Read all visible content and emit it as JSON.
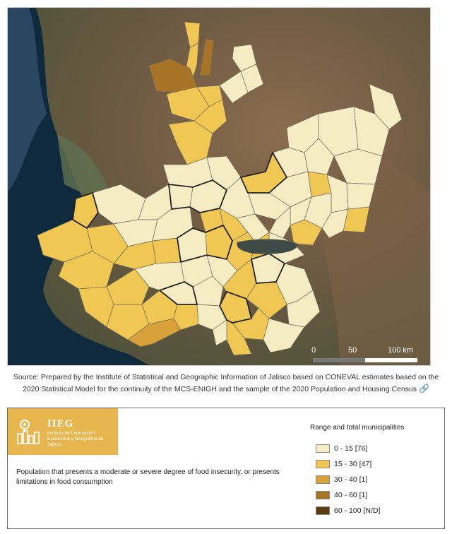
{
  "map": {
    "scale": {
      "labels": [
        "0",
        "50",
        "100 km"
      ]
    }
  },
  "source": {
    "text": "Source: Prepared by the Institute of Statistical and Geographic Information of Jalisco based on CONEVAL estimates based on the 2020 Statistical Model for the continuity of the MCS-ENIGH and the sample of the 2020 Population and Housing Census",
    "icon": "link-icon"
  },
  "logo": {
    "title": "IIEG",
    "subtitle": "Instituto de Información Estadística y Geográfica de Jalisco",
    "icon": "map-pin-buildings-icon"
  },
  "indicator": {
    "text": "Population that presents a moderate or severe degree of food insecurity, or presents limitations in food consumption"
  },
  "legend": {
    "title": "Range and total municipalities",
    "items": [
      {
        "label": "0 - 15  [76]",
        "color": "#f6ecc4"
      },
      {
        "label": "15 - 30  [47]",
        "color": "#f0c753"
      },
      {
        "label": "30 - 40  [1]",
        "color": "#d8a13a"
      },
      {
        "label": "40 - 60  [1]",
        "color": "#a77427"
      },
      {
        "label": "60 - 100  [N/D]",
        "color": "#5a3a12"
      }
    ]
  }
}
